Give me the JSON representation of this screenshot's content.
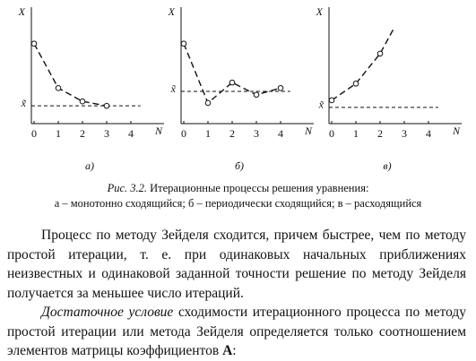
{
  "chart_data": [
    {
      "type": "line",
      "y_label": "X",
      "x_label": "N",
      "sublabel": "а)",
      "x": [
        0,
        1,
        2,
        3
      ],
      "values": [
        3.6,
        1.6,
        1.0,
        0.8
      ],
      "markers": [
        true,
        true,
        true,
        true
      ],
      "x_tilde": {
        "value": 0.8,
        "label": "x̃"
      },
      "xlim": [
        0,
        5
      ],
      "ylim": [
        0,
        5
      ],
      "xticks": [
        0,
        1,
        2,
        3,
        4
      ]
    },
    {
      "type": "line",
      "y_label": "X",
      "x_label": "N",
      "sublabel": "б)",
      "x": [
        0,
        1,
        2,
        3,
        4
      ],
      "values": [
        3.6,
        0.93,
        1.85,
        1.3,
        1.6
      ],
      "markers": [
        true,
        true,
        true,
        true,
        true
      ],
      "x_tilde": {
        "value": 1.45,
        "label": "x̃"
      },
      "xlim": [
        0,
        5
      ],
      "ylim": [
        0,
        5
      ],
      "xticks": [
        0,
        1,
        2,
        3,
        4
      ]
    },
    {
      "type": "line",
      "y_label": "X",
      "x_label": "N",
      "sublabel": "в)",
      "x": [
        0,
        1,
        2,
        2.6
      ],
      "values": [
        1.05,
        1.8,
        3.15,
        4.35
      ],
      "markers": [
        true,
        true,
        true,
        false
      ],
      "x_tilde": {
        "value": 0.73,
        "label": "x̃"
      },
      "xlim": [
        0,
        5
      ],
      "ylim": [
        0,
        5
      ],
      "xticks": [
        0,
        1,
        2,
        3,
        4
      ]
    }
  ],
  "caption": {
    "label": "Рис. 3.2.",
    "text": "Итерационные процессы решения уравнения:",
    "line2": "а – монотонно сходящийся; б – периодически сходящийся; в – расходящийся"
  },
  "paragraphs": [
    {
      "text": "Процесс по методу Зейделя сходится, причем быстрее, чем по методу простой итерации, т. е. при одинаковых начальных приближениях неизвестных и одинаковой заданной точности решение по методу Зейделя получается за меньшее число итераций."
    },
    {
      "italic": "Достаточное условие",
      "text": "сходимости итерационного процесса по методу простой итерации или метода Зейделя определяется только соотношением элементов матрицы коэффициентов",
      "bold": "A",
      "end": ":"
    }
  ]
}
